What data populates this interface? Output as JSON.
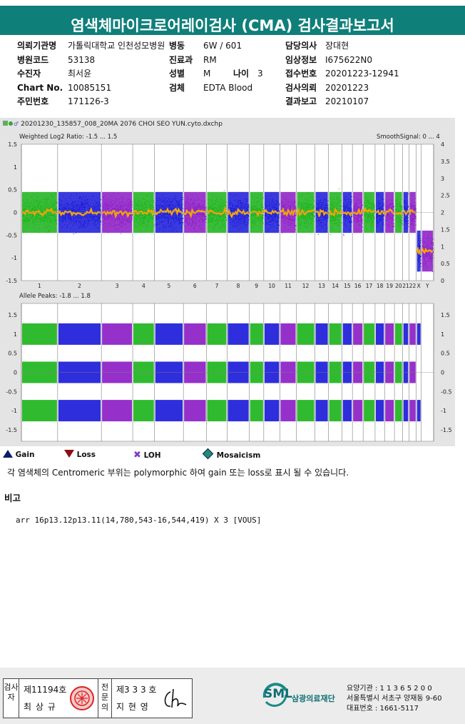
{
  "title": "염색체마이크로어레이검사 (CMA) 검사결과보고서",
  "info": {
    "r1": {
      "l1": "의뢰기관명",
      "v1": "가톨릭대학교 인천성모병원",
      "l2": "병동",
      "v2": "6W / 601",
      "l3": "담당의사",
      "v3": "장대현"
    },
    "r2": {
      "l1": "병원코드",
      "v1": "53138",
      "l2": "진료과",
      "v2": "RM",
      "l3": "임상정보",
      "v3": "I675622N0"
    },
    "r3": {
      "l1": "수진자",
      "v1": "최서윤",
      "l2": "성별",
      "v2": "M",
      "l2b": "나이",
      "v2b": "3",
      "l3": "접수번호",
      "v3": "20201223-12941"
    },
    "r4": {
      "l1": "Chart No.",
      "v1": "10085151",
      "l2": "검체",
      "v2": "EDTA Blood",
      "l3": "검사의뢰",
      "v3": "20201223"
    },
    "r5": {
      "l1": "주민번호",
      "v1": "171126-3",
      "l3": "결과보고",
      "v3": "20210107"
    }
  },
  "plot": {
    "filename": "20201230_135857_008_20MA 2076 CHOI SEO YUN.cyto.dxchp",
    "top_label": "Weighted Log2 Ratio: -1.5 ... 1.5",
    "smooth_label": "SmoothSignal: 0 ... 4",
    "bottom_label": "Allele Peaks: -1.8 ... 1.8",
    "left_ticks_top": [
      "1.5",
      "1",
      "0.5",
      "0",
      "-0.5",
      "-1",
      "-1.5"
    ],
    "right_ticks_top": [
      "4",
      "3.5",
      "3",
      "2.5",
      "2",
      "1.5",
      "1",
      "0.5",
      "0"
    ],
    "left_ticks_bottom": [
      "1.5",
      "1",
      "0.5",
      "0",
      "-0.5",
      "-1",
      "-1.5"
    ],
    "right_ticks_bottom": [
      "1.5",
      "1",
      "0.5",
      "0",
      "-0.5",
      "-1",
      "-1.5"
    ],
    "chromosomes": [
      "1",
      "2",
      "3",
      "4",
      "5",
      "6",
      "7",
      "8",
      "9",
      "10",
      "11",
      "12",
      "13",
      "14",
      "15",
      "16",
      "17",
      "18",
      "19",
      "20",
      "21",
      "22",
      "X",
      "Y"
    ],
    "colors": {
      "green": "#19b219",
      "blue": "#1717d8",
      "purple": "#8a19c4",
      "orange": "#f5a500"
    }
  },
  "legend": {
    "gain": "Gain",
    "loss": "Loss",
    "loh": "LOH",
    "mosaicism": "Mosaicism"
  },
  "note": "각 염색체의 Centromeric 부위는 polymorphic 하여 gain 또는 loss로 표시 될 수 있습니다.",
  "remark_title": "비고",
  "remark_text": "arr 16p13.12p13.11(14,780,543-16,544,419) X 3 [VOUS]",
  "sign": {
    "c1": "검사자",
    "n1": "제11194호",
    "name1": "최 상 규",
    "c2": "전문의",
    "n2": "제3 3 3 호",
    "name2": "지 현 영"
  },
  "org": {
    "logo": "SML",
    "name": "삼광의료재단",
    "line1": "요양기관 : 1 1 3 6 5 2 0 0",
    "line2": "서울특별시 서초구 양재동 9-60",
    "line3": "대표번호 : 1661-5117"
  }
}
